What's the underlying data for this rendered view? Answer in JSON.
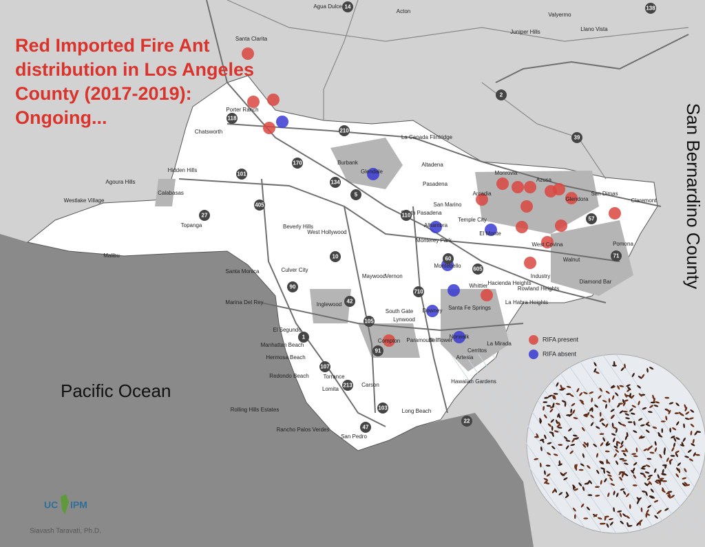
{
  "title_lines": [
    "Red Imported Fire Ant",
    "distribution in Los Angeles",
    "County (2017-2019):",
    "Ongoing..."
  ],
  "region_label": "San Bernardino County",
  "ocean_label": "Pacific Ocean",
  "legend": {
    "items": [
      {
        "label": "RIFA present"
      },
      {
        "label": "RIFA absent"
      }
    ]
  },
  "logo": {
    "left": "UC",
    "right": "IPM"
  },
  "credit": "Siavash Taravati, Ph.D.",
  "places": [
    "Santa Clarita",
    "Porter Ranch",
    "Chatsworth",
    "Hidden Hills",
    "Calabasas",
    "Agoura Hills",
    "Westlake Village",
    "Malibu",
    "Topanga",
    "Burbank",
    "Glendale",
    "Pasadena",
    "La Canada Flintridge",
    "Altadena",
    "Monrovia",
    "Arcadia",
    "Azusa",
    "Glendora",
    "San Dimas",
    "Claremont",
    "Pomona",
    "Walnut",
    "Diamond Bar",
    "West Covina",
    "Industry",
    "Hacienda Heights",
    "Rowland Heights",
    "La Habra Heights",
    "Whittier",
    "La Mirada",
    "Cerritos",
    "Artesia",
    "Hawaiian Gardens",
    "Long Beach",
    "Carson",
    "Torrance",
    "Lomita",
    "Redondo Beach",
    "Hermosa Beach",
    "Manhattan Beach",
    "El Segundo",
    "Inglewood",
    "Compton",
    "Lynwood",
    "South Gate",
    "Downey",
    "Norwalk",
    "Bellflower",
    "Paramount",
    "Santa Monica",
    "Marina Del Rey",
    "Culver City",
    "Beverly Hills",
    "West Hollywood",
    "Vernon",
    "Maywood",
    "Montebello",
    "Monterey Park",
    "Alhambra",
    "El Monte",
    "Temple City",
    "San Marino",
    "South Pasadena",
    "Santa Fe Springs",
    "Rolling Hills Estates",
    "Rancho Palos Verdes",
    "San Pedro",
    "Agua Dulce",
    "Acton",
    "Valyermo",
    "Juniper Hills",
    "Llano Vista"
  ],
  "highways": [
    "14",
    "138",
    "2",
    "39",
    "118",
    "210",
    "170",
    "101",
    "405",
    "27",
    "134",
    "5",
    "110",
    "10",
    "60",
    "605",
    "57",
    "71",
    "90",
    "42",
    "105",
    "710",
    "91",
    "107",
    "213",
    "103",
    "22",
    "47",
    "1"
  ]
}
